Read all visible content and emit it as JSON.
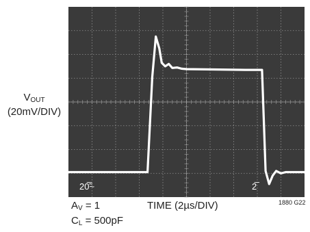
{
  "chart_data": {
    "type": "line",
    "title": "",
    "ylabel_main": "V",
    "ylabel_sub": "OUT",
    "ylabel_scale": "(20mV/DIV)",
    "xlabel": "TIME (2µs/DIV)",
    "screen_readout_left": "20̅̃~",
    "screen_readout_right": "2̅",
    "divisions_x": 10,
    "divisions_y": 8,
    "grid": true,
    "conditions": [
      {
        "main": "A",
        "sub": "V",
        "rest": " = 1"
      },
      {
        "main": "C",
        "sub": "L",
        "rest": " = 500pF"
      }
    ],
    "figure_id": "1880 G22",
    "colors": {
      "screen": "#3a3a3a",
      "grid": "#a8a8a8",
      "trace": "#ffffff"
    },
    "series": [
      {
        "x": [
          0,
          3.35,
          3.55,
          3.7,
          3.85,
          3.95,
          4.1,
          4.25,
          4.4,
          4.6,
          4.8,
          5.0,
          7.5,
          8.2,
          8.35,
          8.5,
          8.65,
          8.8,
          9.0,
          9.2,
          9.4,
          10
        ],
        "y": [
          0,
          0,
          4,
          5.7,
          5.2,
          4.6,
          4.45,
          4.55,
          4.38,
          4.4,
          4.35,
          4.33,
          4.3,
          4.3,
          0.05,
          -0.5,
          -0.15,
          0.05,
          -0.05,
          0.0,
          0.0,
          0.0
        ]
      }
    ]
  }
}
